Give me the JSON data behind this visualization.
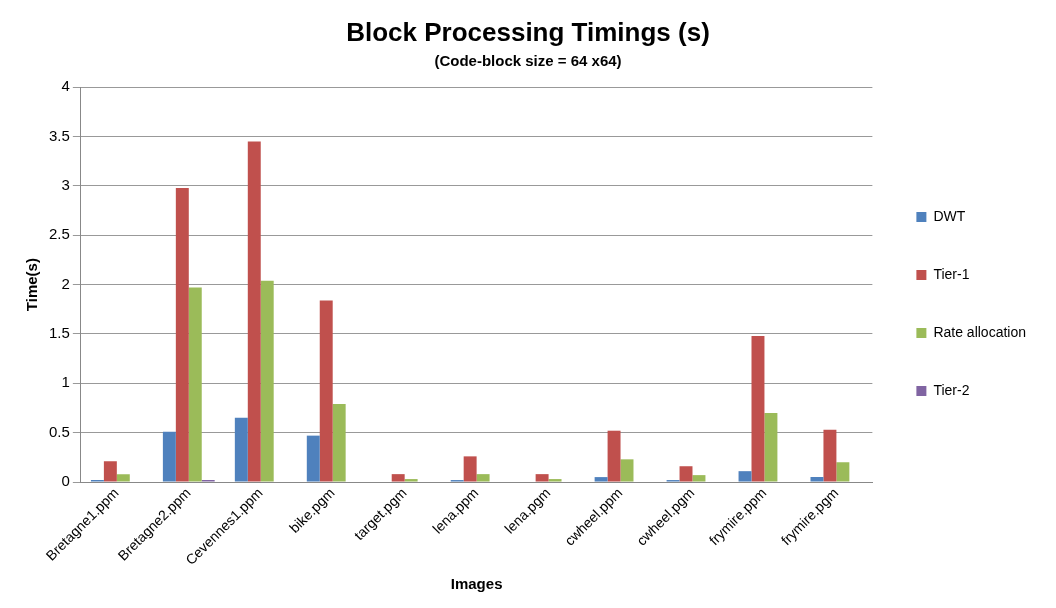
{
  "chart_data": {
    "type": "bar",
    "title": "Block Processing Timings (s)",
    "subtitle": "(Code-block size = 64 x64)",
    "xlabel": "Images",
    "ylabel": "Time(s)",
    "categories": [
      "Bretagne1.ppm",
      "Bretagne2.ppm",
      "Cevennes1.ppm",
      "bike.pgm",
      "target.pgm",
      "lena.ppm",
      "lena.pgm",
      "cwheel.ppm",
      "cwheel.pgm",
      "frymire.ppm",
      "frymire.pgm"
    ],
    "series": [
      {
        "name": "DWT",
        "color": "#4f81bd",
        "values": [
          0.02,
          0.51,
          0.65,
          0.47,
          0,
          0.02,
          0,
          0.05,
          0.02,
          0.11,
          0.05
        ]
      },
      {
        "name": "Tier-1",
        "color": "#c0504d",
        "values": [
          0.21,
          2.98,
          3.45,
          1.84,
          0.08,
          0.26,
          0.08,
          0.52,
          0.16,
          1.48,
          0.53
        ]
      },
      {
        "name": "Rate allocation",
        "color": "#9bbb59",
        "values": [
          0.08,
          1.97,
          2.04,
          0.79,
          0.03,
          0.08,
          0.03,
          0.23,
          0.07,
          0.7,
          0.2
        ]
      },
      {
        "name": "Tier-2",
        "color": "#8064a2",
        "values": [
          0,
          0.02,
          0,
          0,
          0,
          0,
          0,
          0,
          0,
          0,
          0
        ]
      }
    ],
    "ylim": [
      0,
      4
    ],
    "yticks": [
      0,
      0.5,
      1,
      1.5,
      2,
      2.5,
      3,
      3.5,
      4
    ],
    "grid": "y",
    "legend": "right"
  }
}
